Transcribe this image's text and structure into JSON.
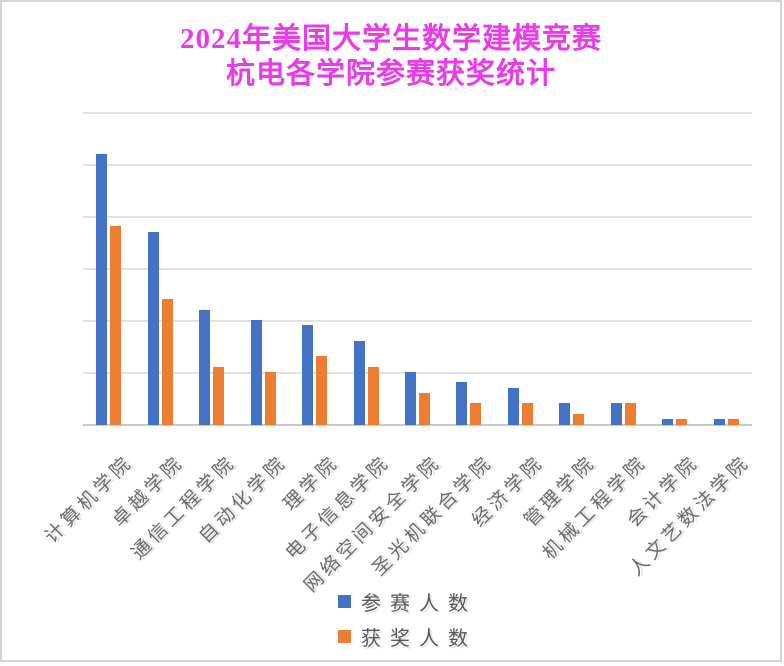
{
  "title": {
    "line1": "2024年美国大学生数学建模竞赛",
    "line2": "杭电各学院参赛获奖统计"
  },
  "chart_data": {
    "type": "bar",
    "title": "2024年美国大学生数学建模竞赛 杭电各学院参赛获奖统计",
    "categories": [
      "计算机学院",
      "卓越学院",
      "通信工程学院",
      "自动化学院",
      "理学院",
      "电子信息学院",
      "网络空间安全学院",
      "圣光机联合学院",
      "经济学院",
      "管理学院",
      "机械工程学院",
      "会计学院",
      "人文艺数法学院"
    ],
    "series": [
      {
        "id": "participants",
        "name": "参赛人数",
        "color": "#4472C4",
        "values": [
          52,
          37,
          22,
          20,
          19,
          16,
          10,
          8,
          7,
          4,
          4,
          1,
          1
        ]
      },
      {
        "id": "awarded",
        "name": "获奖人数",
        "color": "#ED7D31",
        "values": [
          38,
          24,
          11,
          10,
          13,
          11,
          6,
          4,
          4,
          2,
          4,
          1,
          1
        ]
      }
    ],
    "xlabel": "",
    "ylabel": "",
    "ylim": [
      0,
      60
    ],
    "grid_step": 10,
    "grid": "horizontal",
    "y_tick_labels_visible": false,
    "x_label_rotation_deg": 45,
    "legend_position": "bottom-center"
  },
  "styles": {
    "title_color": "#E93BE9",
    "series_blue": "#4472C4",
    "series_orange": "#ED7D31",
    "grid_color": "#E2E2E2",
    "axis_line_color": "#C9C9C9",
    "x_label_color": "#6B6B6B",
    "legend_text_color": "#595959",
    "frame_border_color": "#D4D4D4",
    "background": "#FFFFFF"
  }
}
